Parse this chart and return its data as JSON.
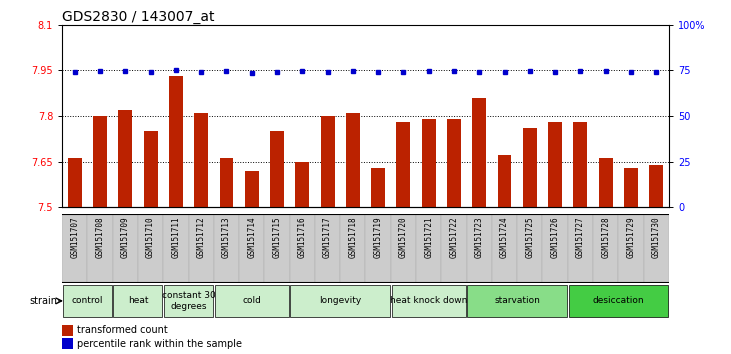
{
  "title": "GDS2830 / 143007_at",
  "samples": [
    "GSM151707",
    "GSM151708",
    "GSM151709",
    "GSM151710",
    "GSM151711",
    "GSM151712",
    "GSM151713",
    "GSM151714",
    "GSM151715",
    "GSM151716",
    "GSM151717",
    "GSM151718",
    "GSM151719",
    "GSM151720",
    "GSM151721",
    "GSM151722",
    "GSM151723",
    "GSM151724",
    "GSM151725",
    "GSM151726",
    "GSM151727",
    "GSM151728",
    "GSM151729",
    "GSM151730"
  ],
  "bar_values": [
    7.66,
    7.8,
    7.82,
    7.75,
    7.93,
    7.81,
    7.66,
    7.62,
    7.75,
    7.65,
    7.8,
    7.81,
    7.63,
    7.78,
    7.79,
    7.79,
    7.86,
    7.67,
    7.76,
    7.78,
    7.78,
    7.66,
    7.63,
    7.64
  ],
  "percentile_values": [
    7.944,
    7.948,
    7.948,
    7.944,
    7.95,
    7.946,
    7.948,
    7.942,
    7.946,
    7.948,
    7.946,
    7.948,
    7.944,
    7.946,
    7.948,
    7.948,
    7.946,
    7.944,
    7.948,
    7.946,
    7.948,
    7.948,
    7.946,
    7.944
  ],
  "ylim": [
    7.5,
    8.1
  ],
  "yticks_left": [
    7.5,
    7.65,
    7.8,
    7.95,
    8.1
  ],
  "ytick_labels_left": [
    "7.5",
    "7.65",
    "7.8",
    "7.95",
    "8.1"
  ],
  "yticks_right_vals": [
    7.5,
    7.65,
    7.8,
    7.95,
    8.1
  ],
  "ytick_labels_right": [
    "0",
    "25",
    "50",
    "75",
    "100%"
  ],
  "grid_yticks": [
    7.65,
    7.8,
    7.95
  ],
  "bar_color": "#bb2200",
  "percentile_color": "#0000cc",
  "grid_color": "#000000",
  "groups": [
    {
      "label": "control",
      "start": 0,
      "end": 2,
      "color": "#cceecc"
    },
    {
      "label": "heat",
      "start": 2,
      "end": 4,
      "color": "#cceecc"
    },
    {
      "label": "constant 30\ndegrees",
      "start": 4,
      "end": 6,
      "color": "#cceecc"
    },
    {
      "label": "cold",
      "start": 6,
      "end": 9,
      "color": "#cceecc"
    },
    {
      "label": "longevity",
      "start": 9,
      "end": 13,
      "color": "#cceecc"
    },
    {
      "label": "heat knock down",
      "start": 13,
      "end": 16,
      "color": "#cceecc"
    },
    {
      "label": "starvation",
      "start": 16,
      "end": 20,
      "color": "#88dd88"
    },
    {
      "label": "desiccation",
      "start": 20,
      "end": 24,
      "color": "#44cc44"
    }
  ],
  "strain_label": "strain",
  "legend_bar_label": "transformed count",
  "legend_pct_label": "percentile rank within the sample",
  "title_fontsize": 10,
  "tick_fontsize": 7,
  "sample_fontsize": 5.5,
  "group_fontsize": 6.5,
  "legend_fontsize": 7
}
